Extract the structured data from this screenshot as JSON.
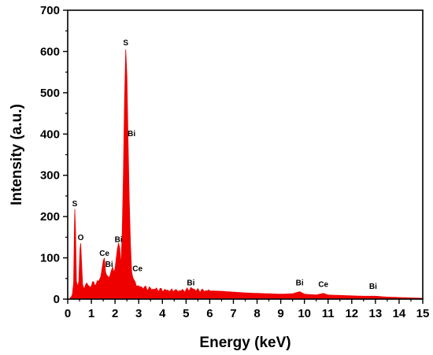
{
  "chart_data": {
    "type": "area",
    "title": "",
    "xlabel": "Energy (keV)",
    "ylabel": "Intensity (a.u.)",
    "xlim": [
      0,
      15
    ],
    "ylim": [
      0,
      700
    ],
    "x_ticks": [
      "0",
      "1",
      "2",
      "3",
      "4",
      "5",
      "6",
      "7",
      "8",
      "9",
      "10",
      "11",
      "12",
      "13",
      "14",
      "15"
    ],
    "y_ticks": [
      "0",
      "100",
      "200",
      "300",
      "400",
      "500",
      "600",
      "700"
    ],
    "grid": false,
    "legend": "none",
    "series": [
      {
        "color": "#ee0000",
        "points": [
          [
            0.1,
            3
          ],
          [
            0.15,
            5
          ],
          [
            0.2,
            12
          ],
          [
            0.25,
            40
          ],
          [
            0.28,
            150
          ],
          [
            0.3,
            218
          ],
          [
            0.33,
            170
          ],
          [
            0.37,
            45
          ],
          [
            0.42,
            28
          ],
          [
            0.47,
            42
          ],
          [
            0.52,
            120
          ],
          [
            0.55,
            136
          ],
          [
            0.58,
            100
          ],
          [
            0.63,
            35
          ],
          [
            0.7,
            28
          ],
          [
            0.8,
            38
          ],
          [
            0.9,
            30
          ],
          [
            1.0,
            34
          ],
          [
            1.1,
            40
          ],
          [
            1.2,
            36
          ],
          [
            1.3,
            44
          ],
          [
            1.4,
            55
          ],
          [
            1.45,
            75
          ],
          [
            1.5,
            90
          ],
          [
            1.55,
            97
          ],
          [
            1.6,
            70
          ],
          [
            1.7,
            50
          ],
          [
            1.78,
            58
          ],
          [
            1.85,
            70
          ],
          [
            1.9,
            76
          ],
          [
            1.95,
            65
          ],
          [
            2.0,
            72
          ],
          [
            2.05,
            100
          ],
          [
            2.1,
            125
          ],
          [
            2.15,
            132
          ],
          [
            2.2,
            120
          ],
          [
            2.25,
            85
          ],
          [
            2.3,
            160
          ],
          [
            2.35,
            300
          ],
          [
            2.4,
            480
          ],
          [
            2.45,
            605
          ],
          [
            2.5,
            540
          ],
          [
            2.55,
            380
          ],
          [
            2.6,
            240
          ],
          [
            2.65,
            130
          ],
          [
            2.7,
            70
          ],
          [
            2.8,
            42
          ],
          [
            2.9,
            36
          ],
          [
            3.0,
            30
          ],
          [
            3.2,
            28
          ],
          [
            3.5,
            25
          ],
          [
            4.0,
            22
          ],
          [
            4.5,
            20
          ],
          [
            5.0,
            21
          ],
          [
            5.2,
            26
          ],
          [
            5.5,
            21
          ],
          [
            6.0,
            20
          ],
          [
            6.5,
            19
          ],
          [
            7.0,
            17
          ],
          [
            7.5,
            15
          ],
          [
            8.0,
            14
          ],
          [
            8.5,
            13
          ],
          [
            9.0,
            12
          ],
          [
            9.5,
            13
          ],
          [
            9.8,
            18
          ],
          [
            10.0,
            12
          ],
          [
            10.5,
            10
          ],
          [
            10.8,
            14
          ],
          [
            11.0,
            10
          ],
          [
            11.5,
            9
          ],
          [
            12.0,
            8
          ],
          [
            12.5,
            7
          ],
          [
            13.0,
            7
          ],
          [
            13.5,
            5
          ],
          [
            14.0,
            4
          ],
          [
            14.5,
            3
          ],
          [
            15.0,
            2
          ]
        ]
      }
    ],
    "annotations": [
      {
        "text": "S",
        "x": 0.3,
        "y": 225
      },
      {
        "text": "O",
        "x": 0.55,
        "y": 143
      },
      {
        "text": "Ce",
        "x": 1.55,
        "y": 105
      },
      {
        "text": "Bi",
        "x": 1.75,
        "y": 78
      },
      {
        "text": "Bi",
        "x": 2.15,
        "y": 138
      },
      {
        "text": "S",
        "x": 2.45,
        "y": 615
      },
      {
        "text": "Bi",
        "x": 2.7,
        "y": 395
      },
      {
        "text": "Ce",
        "x": 2.95,
        "y": 68
      },
      {
        "text": "Bi",
        "x": 5.2,
        "y": 33
      },
      {
        "text": "Bi",
        "x": 9.8,
        "y": 33
      },
      {
        "text": "Ce",
        "x": 10.8,
        "y": 30
      },
      {
        "text": "Bi",
        "x": 12.9,
        "y": 25
      }
    ]
  }
}
